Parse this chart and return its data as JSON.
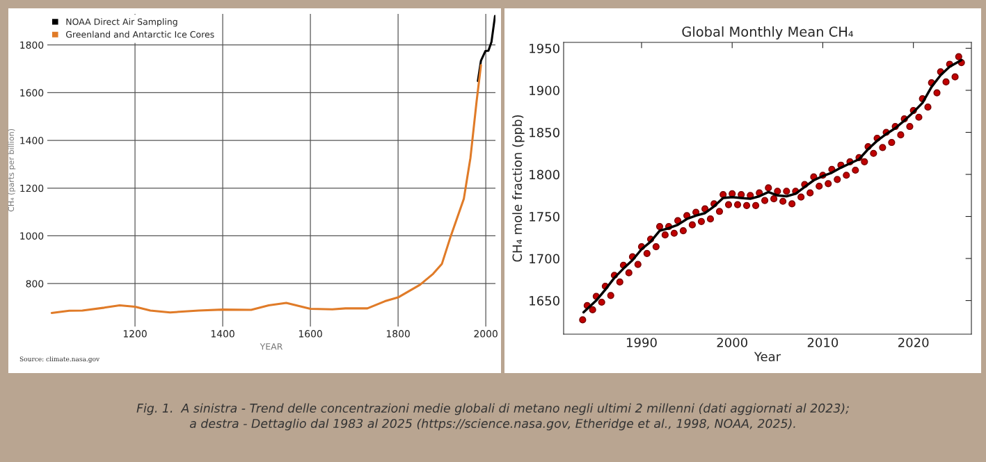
{
  "chart_data": [
    {
      "type": "line",
      "xlabel": "YEAR",
      "ylabel": "CH₄ (parts per billion)",
      "xlim": [
        1000,
        2022
      ],
      "ylim": [
        620,
        1930
      ],
      "xticks": [
        1200,
        1400,
        1600,
        1800,
        2000
      ],
      "yticks": [
        800,
        1000,
        1200,
        1400,
        1600,
        1800
      ],
      "grid": true,
      "legend": "top left",
      "series": [
        {
          "name": "NOAA Direct Air Sampling",
          "color": "#000000",
          "x": [
            1982,
            1989,
            1999,
            2006,
            2013,
            2021
          ],
          "values": [
            1649,
            1734,
            1774,
            1776,
            1813,
            1921
          ]
        },
        {
          "name": "Greenland and Antarctic Ice Cores",
          "color": "#e07b28",
          "x": [
            1010,
            1050,
            1080,
            1130,
            1165,
            1200,
            1235,
            1280,
            1345,
            1400,
            1465,
            1505,
            1545,
            1600,
            1650,
            1680,
            1730,
            1770,
            1800,
            1850,
            1880,
            1900,
            1920,
            1950,
            1965,
            1979,
            1989
          ],
          "values": [
            677,
            686,
            687,
            699,
            709,
            703,
            687,
            679,
            687,
            691,
            690,
            709,
            719,
            694,
            692,
            696,
            696,
            726,
            742,
            795,
            841,
            883,
            998,
            1156,
            1327,
            1563,
            1715
          ]
        }
      ],
      "annotations": [
        "Source: climate.nasa.gov"
      ]
    },
    {
      "type": "line",
      "title": "Global Monthly Mean CH₄",
      "xlabel": "Year",
      "ylabel": "CH₄ mole fraction (ppb)",
      "xlim": [
        1981.4,
        2026.4
      ],
      "ylim": [
        1610,
        1957
      ],
      "xticks": [
        1990,
        2000,
        2010,
        2020
      ],
      "yticks": [
        1650,
        1700,
        1750,
        1800,
        1850,
        1900,
        1950
      ],
      "grid": false,
      "series": [
        {
          "type": "scatter",
          "marker": "circle",
          "color": "#c00000",
          "x": [
            1983.5,
            1984.0,
            1984.6,
            1985.0,
            1985.6,
            1986.0,
            1986.6,
            1987.0,
            1987.6,
            1988.0,
            1988.6,
            1989.0,
            1989.6,
            1990.0,
            1990.6,
            1991.0,
            1991.6,
            1992.0,
            1992.6,
            1993.0,
            1993.6,
            1994.0,
            1994.6,
            1995.0,
            1995.6,
            1996.0,
            1996.6,
            1997.0,
            1997.6,
            1998.0,
            1998.6,
            1999.0,
            1999.6,
            2000.0,
            2000.6,
            2001.0,
            2001.6,
            2002.0,
            2002.6,
            2003.0,
            2003.6,
            2004.0,
            2004.6,
            2005.0,
            2005.6,
            2006.0,
            2006.6,
            2007.0,
            2007.6,
            2008.0,
            2008.6,
            2009.0,
            2009.6,
            2010.0,
            2010.6,
            2011.0,
            2011.6,
            2012.0,
            2012.6,
            2013.0,
            2013.6,
            2014.0,
            2014.6,
            2015.0,
            2015.6,
            2016.0,
            2016.6,
            2017.0,
            2017.6,
            2018.0,
            2018.6,
            2019.0,
            2019.6,
            2020.0,
            2020.6,
            2021.0,
            2021.6,
            2022.0,
            2022.6,
            2023.0,
            2023.6,
            2024.0,
            2024.6,
            2025.0,
            2025.3
          ],
          "values": [
            1627,
            1644,
            1639,
            1655,
            1648,
            1667,
            1656,
            1680,
            1672,
            1692,
            1683,
            1702,
            1693,
            1714,
            1706,
            1723,
            1714,
            1738,
            1728,
            1738,
            1730,
            1745,
            1733,
            1751,
            1740,
            1755,
            1744,
            1759,
            1747,
            1765,
            1756,
            1776,
            1764,
            1777,
            1764,
            1776,
            1763,
            1775,
            1763,
            1778,
            1769,
            1784,
            1771,
            1780,
            1768,
            1780,
            1765,
            1780,
            1773,
            1788,
            1778,
            1797,
            1786,
            1799,
            1789,
            1806,
            1794,
            1811,
            1799,
            1815,
            1805,
            1820,
            1815,
            1833,
            1825,
            1843,
            1832,
            1850,
            1838,
            1857,
            1847,
            1866,
            1857,
            1876,
            1868,
            1890,
            1880,
            1909,
            1897,
            1922,
            1910,
            1931,
            1916,
            1940,
            1933
          ]
        },
        {
          "type": "line",
          "color": "#000000",
          "x": [
            1983.6,
            1985,
            1986,
            1987,
            1988,
            1989,
            1990,
            1991,
            1992,
            1993,
            1994,
            1995,
            1996,
            1997,
            1998,
            1999,
            2000,
            2001,
            2002,
            2003,
            2004,
            2005,
            2006,
            2007,
            2008,
            2009,
            2010,
            2011,
            2012,
            2013,
            2014,
            2015,
            2016,
            2017,
            2018,
            2019,
            2020,
            2021,
            2022,
            2023,
            2024,
            2025.3
          ],
          "values": [
            1636,
            1650,
            1663,
            1677,
            1688,
            1698,
            1711,
            1720,
            1733,
            1736,
            1740,
            1747,
            1751,
            1754,
            1762,
            1772,
            1773,
            1772,
            1771,
            1774,
            1779,
            1775,
            1774,
            1777,
            1785,
            1793,
            1798,
            1802,
            1808,
            1813,
            1818,
            1830,
            1840,
            1848,
            1855,
            1864,
            1874,
            1885,
            1904,
            1918,
            1928,
            1936
          ]
        }
      ],
      "annotations": [
        "Fig. 1.  A sinistra - Trend delle concentrazioni medie globali di metano negli ultimi 2 millenni (dati aggiornati al 2023);\na destra - Dettaglio dal 1983 al 2025 (https://science.nasa.gov, Etheridge et al., 1998, NOAA, 2025)."
      ]
    }
  ]
}
